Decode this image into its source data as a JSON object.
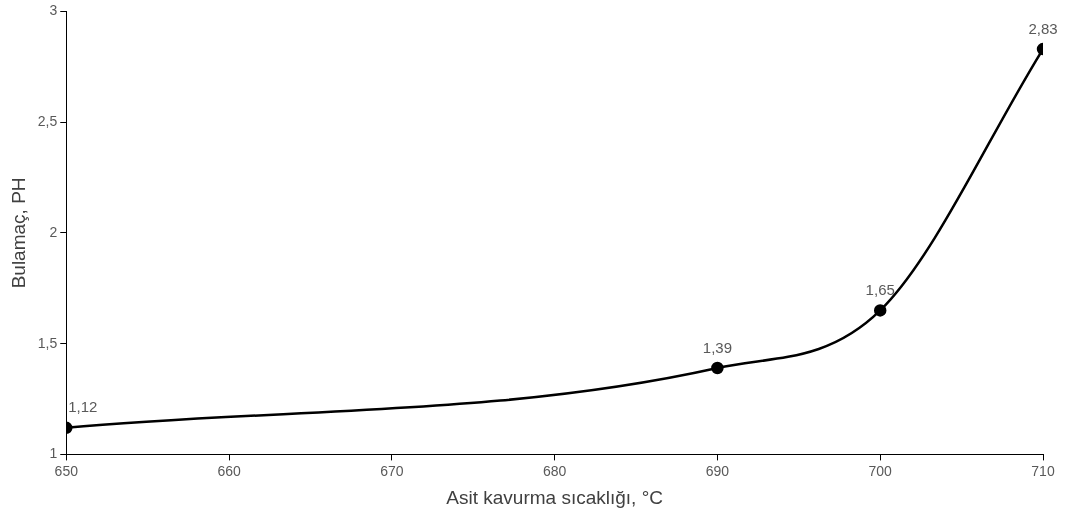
{
  "chart_data": {
    "type": "line",
    "xlabel": "Asit kavurma sıcaklığı, °C",
    "ylabel": "Bulamaç, PH",
    "x": [
      650,
      690,
      700,
      710
    ],
    "series": [
      {
        "color": "#000000",
        "values": [
          1.12,
          1.39,
          1.65,
          2.83
        ],
        "value_labels": [
          "1,12",
          "1,39",
          "1,65",
          "2,83"
        ]
      }
    ],
    "xlim": [
      650,
      710
    ],
    "xticks": [
      650,
      660,
      670,
      680,
      690,
      700,
      710
    ],
    "ylim": [
      1,
      3
    ],
    "yticks": [
      1,
      {
        "value": 1.5,
        "label": "1,5"
      },
      2,
      {
        "value": 2.5,
        "label": "2,5"
      },
      3
    ],
    "grid": false,
    "legend": false,
    "marker": "circle",
    "line_style": "solid"
  }
}
